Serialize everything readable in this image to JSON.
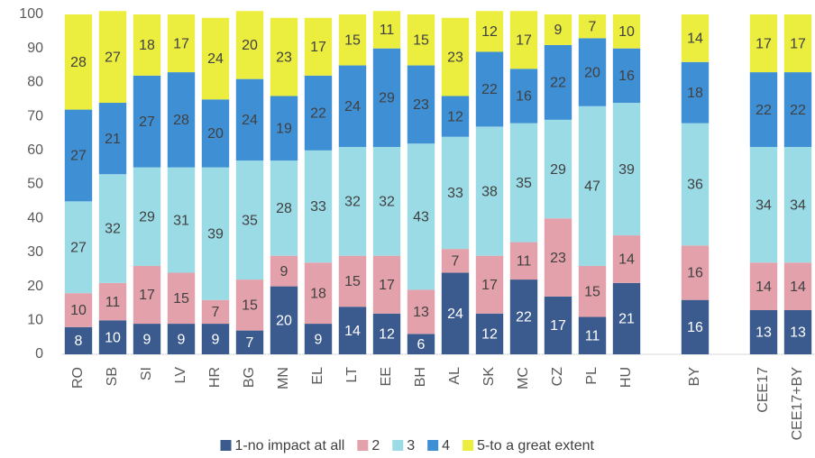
{
  "chart_data": {
    "type": "stacked_bar",
    "categories": [
      "RO",
      "SB",
      "SI",
      "LV",
      "HR",
      "BG",
      "MN",
      "EL",
      "LT",
      "EE",
      "BH",
      "AL",
      "SK",
      "MC",
      "CZ",
      "PL",
      "HU",
      null,
      "BY",
      null,
      "CEE17",
      "CEE17+BY"
    ],
    "series": [
      {
        "name": "1-no impact at all",
        "color": "#3b5b8f",
        "values": [
          8,
          10,
          9,
          9,
          9,
          7,
          20,
          9,
          14,
          12,
          6,
          24,
          12,
          22,
          17,
          11,
          21,
          null,
          16,
          null,
          13,
          13
        ]
      },
      {
        "name": "2",
        "color": "#e3a2ab",
        "values": [
          10,
          11,
          17,
          15,
          7,
          15,
          9,
          18,
          15,
          17,
          13,
          7,
          17,
          11,
          23,
          15,
          14,
          null,
          16,
          null,
          14,
          14
        ]
      },
      {
        "name": "3",
        "color": "#9bdbe6",
        "values": [
          27,
          32,
          29,
          31,
          39,
          35,
          28,
          33,
          32,
          32,
          43,
          33,
          38,
          35,
          29,
          47,
          39,
          null,
          36,
          null,
          34,
          34
        ]
      },
      {
        "name": "4",
        "color": "#3f8fd4",
        "values": [
          27,
          21,
          27,
          28,
          20,
          24,
          19,
          22,
          24,
          29,
          23,
          12,
          22,
          16,
          22,
          20,
          16,
          null,
          18,
          null,
          22,
          22
        ]
      },
      {
        "name": "5-to a great extent",
        "color": "#ebee3f",
        "values": [
          28,
          27,
          18,
          17,
          24,
          20,
          23,
          17,
          15,
          11,
          15,
          23,
          12,
          17,
          9,
          7,
          10,
          null,
          14,
          null,
          17,
          17
        ]
      }
    ],
    "ylim": [
      0,
      100
    ],
    "yticks": [
      0,
      10,
      20,
      30,
      40,
      50,
      60,
      70,
      80,
      90,
      100
    ],
    "grid": false,
    "legend": "bottom"
  }
}
